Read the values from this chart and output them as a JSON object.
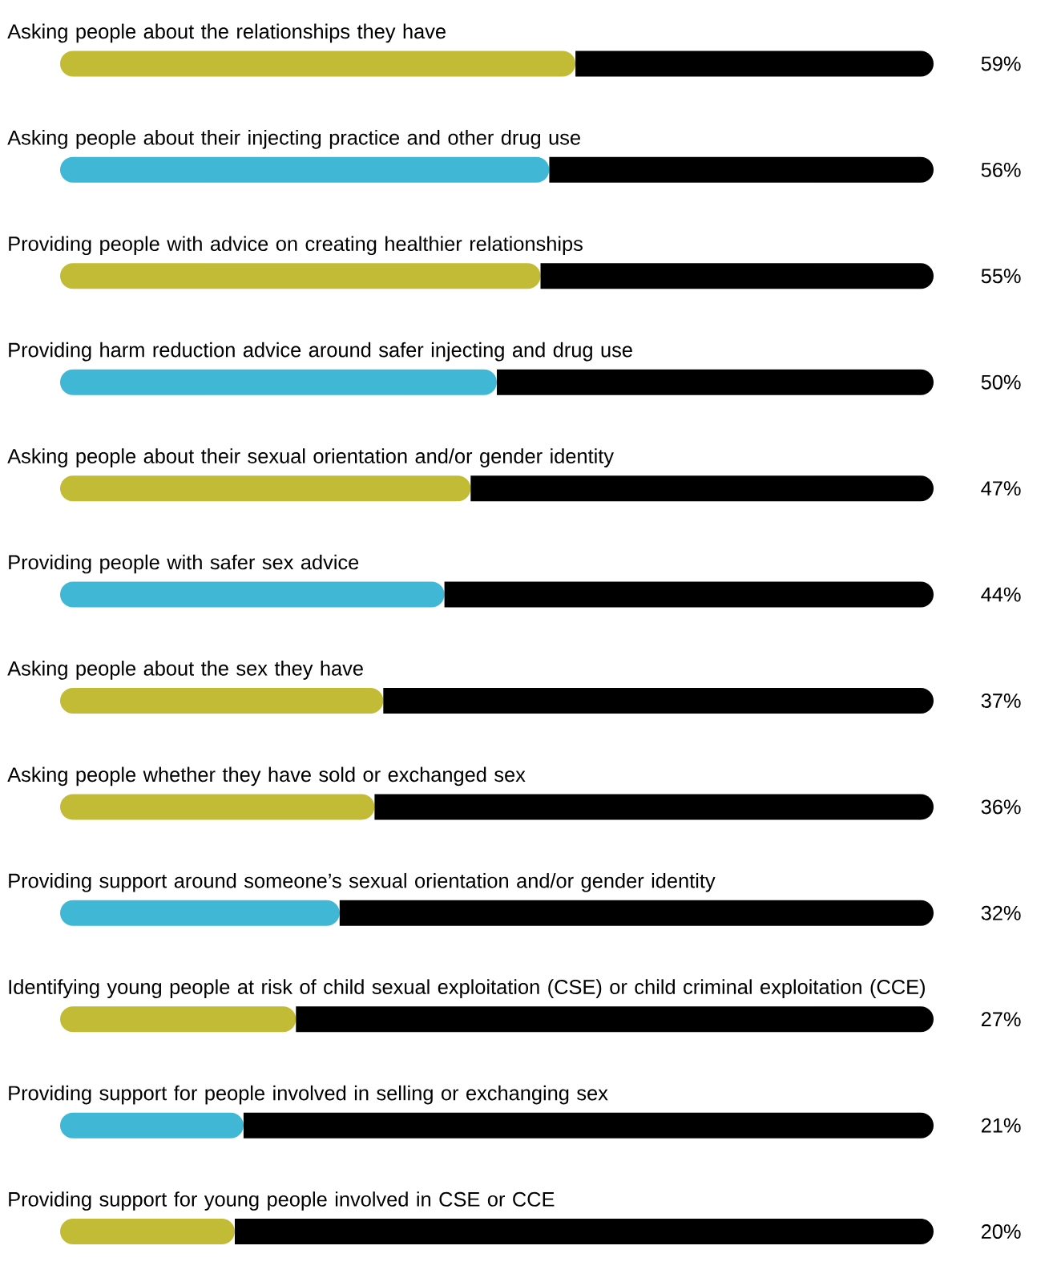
{
  "chart_data": {
    "type": "bar",
    "orientation": "horizontal",
    "stacked": true,
    "tick_labels": "y",
    "xlim": [
      0,
      100
    ],
    "categories": [
      "Asking people about the relationships they have",
      "Asking people about their injecting practice and other drug use",
      "Providing people with advice on creating healthier relationships",
      "Providing harm reduction advice around safer injecting and drug use",
      "Asking people about their sexual orientation and/or gender identity",
      "Providing people with safer sex advice",
      "Asking people about the sex they have",
      "Asking people whether they have sold or exchanged sex",
      "Providing support around someone’s sexual orientation and/or gender identity",
      "Identifying young people at risk of child sexual exploitation (CSE) or child criminal exploitation (CCE)",
      "Providing support for people involved in selling or exchanging sex",
      "Providing support for young people involved in CSE or CCE"
    ],
    "series": [
      {
        "values": [
          59,
          56,
          55,
          50,
          47,
          44,
          37,
          36,
          32,
          27,
          21,
          20
        ],
        "colors": [
          "#c2bb35",
          "#40b7d5",
          "#c2bb35",
          "#40b7d5",
          "#c2bb35",
          "#40b7d5",
          "#c2bb35",
          "#c2bb35",
          "#40b7d5",
          "#c2bb35",
          "#40b7d5",
          "#c2bb35"
        ],
        "value_labels": [
          "59%",
          "56%",
          "55%",
          "50%",
          "47%",
          "44%",
          "37%",
          "36%",
          "32%",
          "27%",
          "21%",
          "20%"
        ]
      },
      {
        "values": [
          41,
          44,
          45,
          50,
          53,
          56,
          63,
          64,
          68,
          73,
          79,
          80
        ],
        "color": "#000000"
      }
    ]
  }
}
